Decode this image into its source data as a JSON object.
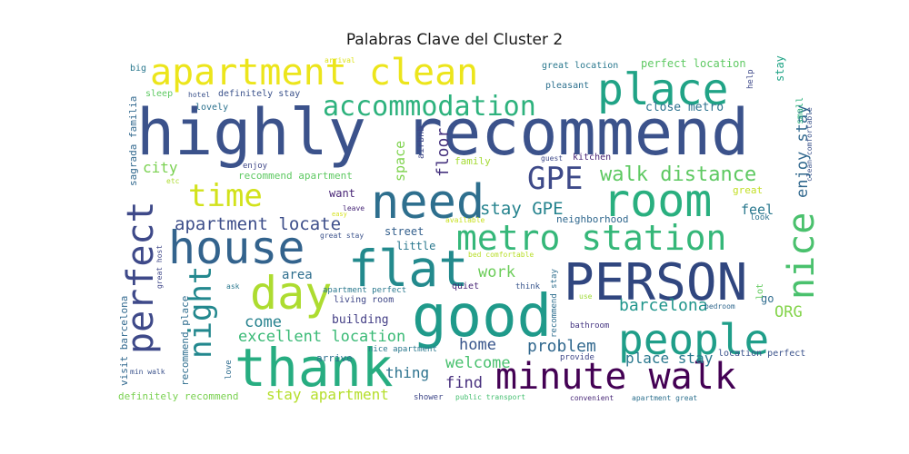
{
  "chart_data": {
    "type": "wordcloud",
    "title": "Palabras Clave del Cluster 2",
    "words": [
      {
        "text": "highly recommend",
        "color": "#3b528b"
      },
      {
        "text": "PERSON",
        "color": "#30467f"
      },
      {
        "text": "apartment clean",
        "color": "#ece51b"
      },
      {
        "text": "place",
        "color": "#20a386"
      },
      {
        "text": "good",
        "color": "#1f9a8a"
      },
      {
        "text": "thank",
        "color": "#27ad81"
      },
      {
        "text": "need",
        "color": "#2e6f8e"
      },
      {
        "text": "house",
        "color": "#33638d"
      },
      {
        "text": "flat",
        "color": "#238a8d"
      },
      {
        "text": "room",
        "color": "#29af7f"
      },
      {
        "text": "day",
        "color": "#addc30"
      },
      {
        "text": "people",
        "color": "#1f9e89"
      },
      {
        "text": "minute walk",
        "color": "#440154"
      },
      {
        "text": "metro station",
        "color": "#35b779"
      },
      {
        "text": "nice",
        "color": "#4ac16d"
      },
      {
        "text": "perfect",
        "color": "#3e4989"
      },
      {
        "text": "night",
        "color": "#23888e"
      },
      {
        "text": "time",
        "color": "#d2e21b"
      },
      {
        "text": "GPE",
        "color": "#3e4a89"
      },
      {
        "text": "accommodation",
        "color": "#2db27d"
      },
      {
        "text": "walk distance",
        "color": "#5ec962"
      },
      {
        "text": "enjoy stay",
        "color": "#31688e"
      },
      {
        "text": "apartment locate",
        "color": "#3d4e8a"
      },
      {
        "text": "stay GPE",
        "color": "#25838e"
      },
      {
        "text": "barcelona",
        "color": "#1f958b"
      },
      {
        "text": "problem",
        "color": "#31688e"
      },
      {
        "text": "excellent location",
        "color": "#3aba76"
      },
      {
        "text": "ORG",
        "color": "#84d44b"
      },
      {
        "text": "come",
        "color": "#26828e"
      },
      {
        "text": "home",
        "color": "#39568c"
      },
      {
        "text": "work",
        "color": "#6ccd5a"
      },
      {
        "text": "welcome",
        "color": "#48c16e"
      },
      {
        "text": "find",
        "color": "#472f7d"
      },
      {
        "text": "thing",
        "color": "#2c728e"
      },
      {
        "text": "place stay",
        "color": "#2a788e"
      },
      {
        "text": "stay apartment",
        "color": "#b5de2b"
      },
      {
        "text": "city",
        "color": "#7ad151"
      },
      {
        "text": "space",
        "color": "#7fd34e"
      },
      {
        "text": "floor",
        "color": "#46337f"
      },
      {
        "text": "area",
        "color": "#2e6e8e"
      },
      {
        "text": "building",
        "color": "#433e85"
      },
      {
        "text": "feel",
        "color": "#2a788e"
      },
      {
        "text": "close metro",
        "color": "#2c728e"
      },
      {
        "text": "perfect location",
        "color": "#5ec962"
      },
      {
        "text": "great location",
        "color": "#2a788e"
      },
      {
        "text": "recommend apartment",
        "color": "#5ec962"
      },
      {
        "text": "neighborhood",
        "color": "#31688e"
      },
      {
        "text": "street",
        "color": "#35608d"
      },
      {
        "text": "little",
        "color": "#2a788e"
      },
      {
        "text": "want",
        "color": "#482576"
      },
      {
        "text": "family",
        "color": "#a5db36"
      },
      {
        "text": "kitchen",
        "color": "#482475"
      },
      {
        "text": "airbnb",
        "color": "#3f4788"
      },
      {
        "text": "visit barcelona",
        "color": "#31688e"
      },
      {
        "text": "recommend place",
        "color": "#2e6d8e"
      },
      {
        "text": "definitely recommend",
        "color": "#7ad151"
      },
      {
        "text": "sagrada familia",
        "color": "#31688e"
      },
      {
        "text": "big",
        "color": "#2a788e"
      },
      {
        "text": "clean comfortable",
        "color": "#3b528b"
      },
      {
        "text": "small",
        "color": "#2db27d"
      },
      {
        "text": "help",
        "color": "#3e4989"
      },
      {
        "text": "stay",
        "color": "#20a486"
      },
      {
        "text": "great",
        "color": "#c2df23"
      },
      {
        "text": "look",
        "color": "#2c728e"
      },
      {
        "text": "go",
        "color": "#2f6c8e"
      },
      {
        "text": "lot",
        "color": "#63cb5f"
      },
      {
        "text": "bedroom",
        "color": "#31688e"
      },
      {
        "text": "location perfect",
        "color": "#3b528b"
      },
      {
        "text": "convenient",
        "color": "#482878"
      },
      {
        "text": "apartment great",
        "color": "#2d708e"
      },
      {
        "text": "provide",
        "color": "#3f4889"
      },
      {
        "text": "bathroom",
        "color": "#453581"
      },
      {
        "text": "recommend stay",
        "color": "#2e6e8e"
      },
      {
        "text": "shower",
        "color": "#3f4788"
      },
      {
        "text": "public transport",
        "color": "#44bf70"
      },
      {
        "text": "nice apartment",
        "color": "#2a788e"
      },
      {
        "text": "arrive",
        "color": "#2d708e"
      },
      {
        "text": "living room",
        "color": "#3f4788"
      },
      {
        "text": "apartment perfect",
        "color": "#2a788e"
      },
      {
        "text": "quiet",
        "color": "#482576"
      },
      {
        "text": "think",
        "color": "#39568c"
      },
      {
        "text": "use",
        "color": "#a0da39"
      },
      {
        "text": "bed comfortable",
        "color": "#b8de29"
      },
      {
        "text": "available",
        "color": "#c8e020"
      },
      {
        "text": "great stay",
        "color": "#3b528b"
      },
      {
        "text": "leave",
        "color": "#482878"
      },
      {
        "text": "easy",
        "color": "#d5e21a"
      },
      {
        "text": "great host",
        "color": "#3f4788"
      },
      {
        "text": "ask",
        "color": "#2a788e"
      },
      {
        "text": "love",
        "color": "#2f6c8e"
      },
      {
        "text": "min walk",
        "color": "#3b528b"
      },
      {
        "text": "enjoy",
        "color": "#3f4788"
      },
      {
        "text": "etc",
        "color": "#addc30"
      },
      {
        "text": "hotel",
        "color": "#3b528b"
      },
      {
        "text": "sleep",
        "color": "#5ec962"
      },
      {
        "text": "lovely",
        "color": "#2c728e"
      },
      {
        "text": "definitely stay",
        "color": "#3b528b"
      },
      {
        "text": "pleasant",
        "color": "#2d708e"
      },
      {
        "text": "guest",
        "color": "#3e4989"
      },
      {
        "text": "arrival",
        "color": "#dde318"
      }
    ]
  }
}
